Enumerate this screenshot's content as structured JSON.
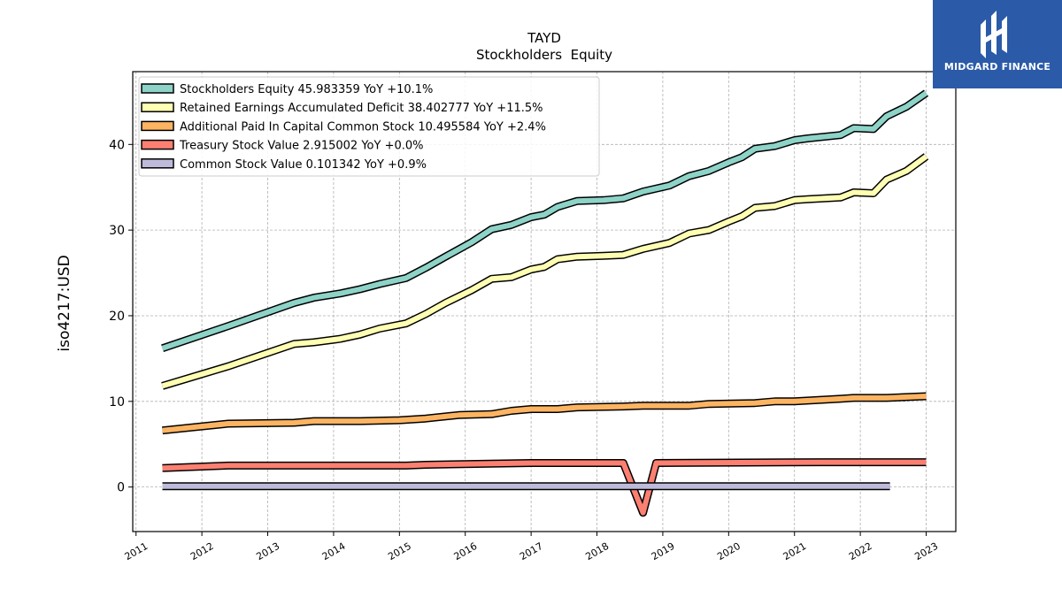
{
  "chart_data": {
    "type": "line",
    "title": "TAYD",
    "subtitle": "Stockholders  Equity",
    "ylabel": "iso4217:USD",
    "xlabel": "",
    "xlim": [
      2010.95,
      2023.45
    ],
    "ylim": [
      -5.2,
      48.5
    ],
    "x_ticks": [
      "2011",
      "2012",
      "2013",
      "2014",
      "2015",
      "2016",
      "2017",
      "2018",
      "2019",
      "2020",
      "2021",
      "2022",
      "2023"
    ],
    "y_ticks": [
      0,
      10,
      20,
      30,
      40
    ],
    "grid": true,
    "legend_position": "top-left",
    "series": [
      {
        "name": "Stockholders Equity  45.983359 YoY +10.1%",
        "color": "#8dd3c7",
        "points": [
          [
            2011.4,
            16.2
          ],
          [
            2012.4,
            18.8
          ],
          [
            2013.4,
            21.5
          ],
          [
            2013.7,
            22.1
          ],
          [
            2014.1,
            22.6
          ],
          [
            2014.4,
            23.1
          ],
          [
            2014.7,
            23.7
          ],
          [
            2015.1,
            24.4
          ],
          [
            2015.4,
            25.6
          ],
          [
            2015.7,
            26.9
          ],
          [
            2016.1,
            28.6
          ],
          [
            2016.4,
            30.1
          ],
          [
            2016.7,
            30.6
          ],
          [
            2017.0,
            31.5
          ],
          [
            2017.2,
            31.8
          ],
          [
            2017.4,
            32.7
          ],
          [
            2017.7,
            33.4
          ],
          [
            2018.1,
            33.5
          ],
          [
            2018.4,
            33.7
          ],
          [
            2018.7,
            34.5
          ],
          [
            2019.1,
            35.2
          ],
          [
            2019.4,
            36.3
          ],
          [
            2019.7,
            36.9
          ],
          [
            2020.0,
            37.9
          ],
          [
            2020.2,
            38.5
          ],
          [
            2020.4,
            39.5
          ],
          [
            2020.7,
            39.8
          ],
          [
            2021.0,
            40.5
          ],
          [
            2021.2,
            40.7
          ],
          [
            2021.7,
            41.1
          ],
          [
            2021.9,
            41.9
          ],
          [
            2022.2,
            41.8
          ],
          [
            2022.4,
            43.3
          ],
          [
            2022.7,
            44.4
          ],
          [
            2023.0,
            46.0
          ]
        ]
      },
      {
        "name": "Retained Earnings Accumulated Deficit  38.402777 YoY +11.5%",
        "color": "#ffffb3",
        "points": [
          [
            2011.4,
            11.8
          ],
          [
            2012.4,
            14.1
          ],
          [
            2013.4,
            16.7
          ],
          [
            2013.7,
            16.9
          ],
          [
            2014.1,
            17.3
          ],
          [
            2014.4,
            17.8
          ],
          [
            2014.7,
            18.5
          ],
          [
            2015.1,
            19.1
          ],
          [
            2015.4,
            20.2
          ],
          [
            2015.7,
            21.5
          ],
          [
            2016.1,
            23.0
          ],
          [
            2016.4,
            24.3
          ],
          [
            2016.7,
            24.5
          ],
          [
            2017.0,
            25.4
          ],
          [
            2017.2,
            25.7
          ],
          [
            2017.4,
            26.6
          ],
          [
            2017.7,
            26.9
          ],
          [
            2018.1,
            27.0
          ],
          [
            2018.4,
            27.1
          ],
          [
            2018.7,
            27.8
          ],
          [
            2019.1,
            28.5
          ],
          [
            2019.4,
            29.6
          ],
          [
            2019.7,
            30.0
          ],
          [
            2020.0,
            31.0
          ],
          [
            2020.2,
            31.6
          ],
          [
            2020.4,
            32.6
          ],
          [
            2020.7,
            32.8
          ],
          [
            2021.0,
            33.5
          ],
          [
            2021.2,
            33.6
          ],
          [
            2021.7,
            33.8
          ],
          [
            2021.9,
            34.4
          ],
          [
            2022.2,
            34.3
          ],
          [
            2022.4,
            35.9
          ],
          [
            2022.7,
            36.9
          ],
          [
            2023.0,
            38.6
          ]
        ]
      },
      {
        "name": "Additional Paid In Capital Common Stock  10.495584 YoY +2.4%",
        "color": "#fdb462",
        "points": [
          [
            2011.4,
            6.6
          ],
          [
            2012.4,
            7.4
          ],
          [
            2013.4,
            7.5
          ],
          [
            2013.7,
            7.7
          ],
          [
            2014.4,
            7.7
          ],
          [
            2015.0,
            7.8
          ],
          [
            2015.4,
            8.0
          ],
          [
            2015.9,
            8.4
          ],
          [
            2016.4,
            8.5
          ],
          [
            2016.7,
            8.9
          ],
          [
            2017.0,
            9.1
          ],
          [
            2017.4,
            9.1
          ],
          [
            2017.7,
            9.3
          ],
          [
            2018.4,
            9.4
          ],
          [
            2018.7,
            9.5
          ],
          [
            2019.4,
            9.5
          ],
          [
            2019.7,
            9.7
          ],
          [
            2020.4,
            9.8
          ],
          [
            2020.7,
            10.0
          ],
          [
            2021.0,
            10.0
          ],
          [
            2021.7,
            10.3
          ],
          [
            2021.9,
            10.4
          ],
          [
            2022.4,
            10.4
          ],
          [
            2023.0,
            10.6
          ]
        ]
      },
      {
        "name": "Treasury Stock Value  2.915002 YoY +0.0%",
        "color": "#fb8072",
        "points": [
          [
            2011.4,
            2.2
          ],
          [
            2012.4,
            2.5
          ],
          [
            2015.1,
            2.5
          ],
          [
            2015.4,
            2.6
          ],
          [
            2017.0,
            2.8
          ],
          [
            2018.4,
            2.8
          ],
          [
            2018.7,
            -3.0
          ],
          [
            2018.9,
            2.8
          ],
          [
            2021.4,
            2.9
          ],
          [
            2023.0,
            2.9
          ]
        ]
      },
      {
        "name": "Common Stock Value  0.101342 YoY +0.9%",
        "color": "#bebada",
        "points": [
          [
            2011.4,
            0.1
          ],
          [
            2022.45,
            0.1
          ]
        ]
      }
    ]
  },
  "logo": {
    "text": "MIDGARD FINANCE",
    "background": "#2b5ba8"
  }
}
